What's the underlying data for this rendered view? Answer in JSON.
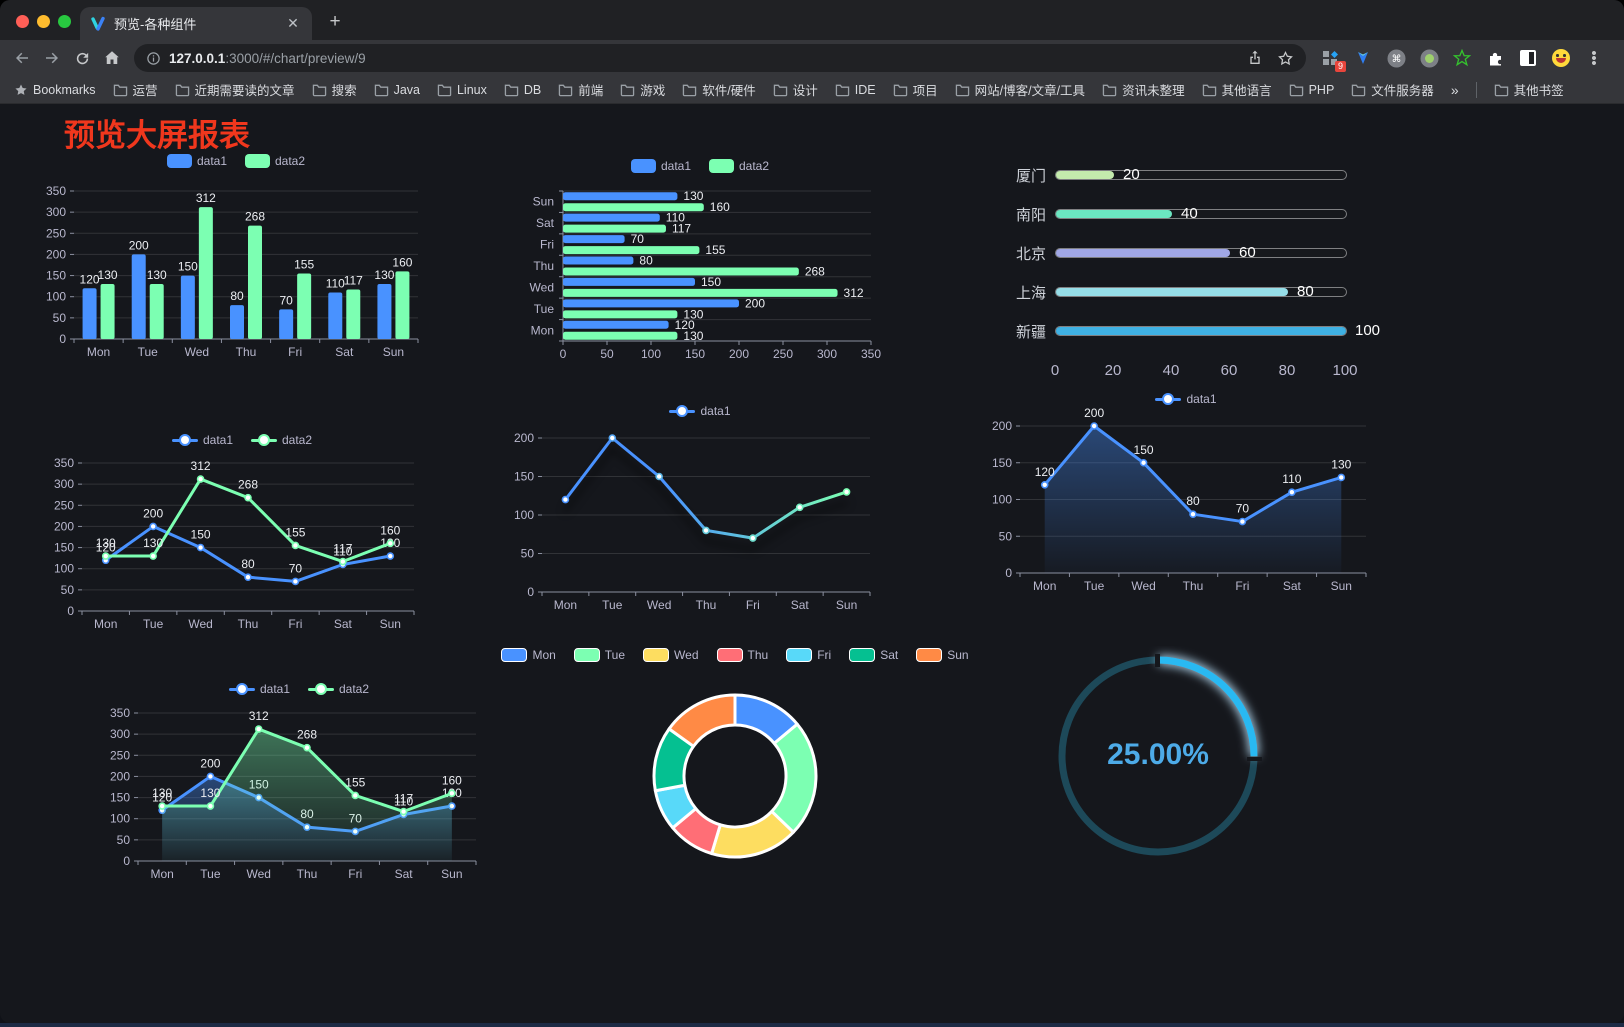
{
  "browser": {
    "tab": {
      "title": "预览-各种组件"
    },
    "new_tab_label": "+",
    "close_label": "✕",
    "url": {
      "host": "127.0.0.1",
      "rest": ":3000/#/chart/preview/9"
    },
    "bookmarks_label": "Bookmarks",
    "bookmarks": [
      "运营",
      "近期需要读的文章",
      "搜索",
      "Java",
      "Linux",
      "DB",
      "前端",
      "游戏",
      "软件/硬件",
      "设计",
      "IDE",
      "项目",
      "网站/博客/文章/工具",
      "资讯未整理",
      "其他语言",
      "PHP",
      "文件服务器"
    ],
    "bookmarks_overflow": "»",
    "other_bookmarks": "其他书签",
    "extension_badge": "9"
  },
  "page": {
    "title": "预览大屏报表"
  },
  "theme": {
    "background": "#15171c",
    "axis_text": "#b9b8ce",
    "grid_line": "rgba(255,255,255,0.12)",
    "axis_line": "#8b90a0",
    "value_label": "#eceef2"
  },
  "chart_data": [
    {
      "id": "grouped-bar",
      "type": "bar",
      "categories": [
        "Mon",
        "Tue",
        "Wed",
        "Thu",
        "Fri",
        "Sat",
        "Sun"
      ],
      "series": [
        {
          "name": "data1",
          "color": "#4992ff",
          "values": [
            120,
            200,
            150,
            80,
            70,
            110,
            130
          ]
        },
        {
          "name": "data2",
          "color": "#7cffb2",
          "values": [
            130,
            130,
            312,
            268,
            155,
            117,
            160
          ]
        }
      ],
      "ylim": [
        0,
        350
      ],
      "ytick_step": 50,
      "legend_position": "top",
      "value_labels": true
    },
    {
      "id": "grouped-hbar",
      "type": "bar",
      "orientation": "horizontal",
      "categories": [
        "Mon",
        "Tue",
        "Wed",
        "Thu",
        "Fri",
        "Sat",
        "Sun"
      ],
      "series": [
        {
          "name": "data1",
          "color": "#4992ff",
          "values": [
            120,
            200,
            150,
            80,
            70,
            110,
            130
          ]
        },
        {
          "name": "data2",
          "color": "#7cffb2",
          "values": [
            130,
            130,
            312,
            268,
            155,
            117,
            160
          ]
        }
      ],
      "xlim": [
        0,
        350
      ],
      "xtick_step": 50,
      "legend_position": "top",
      "value_labels": true
    },
    {
      "id": "city-progress",
      "type": "bar",
      "variant": "progress",
      "categories": [
        "厦门",
        "南阳",
        "北京",
        "上海",
        "新疆"
      ],
      "values": [
        20,
        40,
        60,
        80,
        100
      ],
      "colors": [
        "#c4ebad",
        "#6be6c1",
        "#a0a7e6",
        "#96dee8",
        "#3fb1e3"
      ],
      "xlim": [
        0,
        100
      ],
      "xticks": [
        0,
        20,
        40,
        60,
        80,
        100
      ],
      "value_labels": true
    },
    {
      "id": "dual-line",
      "type": "line",
      "categories": [
        "Mon",
        "Tue",
        "Wed",
        "Thu",
        "Fri",
        "Sat",
        "Sun"
      ],
      "series": [
        {
          "name": "data1",
          "color": "#4992ff",
          "values": [
            120,
            200,
            150,
            80,
            70,
            110,
            130
          ]
        },
        {
          "name": "data2",
          "color": "#7cffb2",
          "values": [
            130,
            130,
            312,
            268,
            155,
            117,
            160
          ]
        }
      ],
      "ylim": [
        0,
        350
      ],
      "ytick_step": 50,
      "legend_position": "top",
      "value_labels": true
    },
    {
      "id": "gradient-line",
      "type": "line",
      "categories": [
        "Mon",
        "Tue",
        "Wed",
        "Thu",
        "Fri",
        "Sat",
        "Sun"
      ],
      "series": [
        {
          "name": "data1",
          "color": "#4992ff",
          "values": [
            120,
            200,
            150,
            80,
            70,
            110,
            130
          ]
        }
      ],
      "line_gradient": [
        "#4992ff",
        "#7cffb2"
      ],
      "ylim": [
        0,
        200
      ],
      "ytick_step": 50,
      "legend_position": "top",
      "value_labels": false
    },
    {
      "id": "area-line",
      "type": "area",
      "categories": [
        "Mon",
        "Tue",
        "Wed",
        "Thu",
        "Fri",
        "Sat",
        "Sun"
      ],
      "series": [
        {
          "name": "data1",
          "color": "#4992ff",
          "values": [
            120,
            200,
            150,
            80,
            70,
            110,
            130
          ]
        }
      ],
      "ylim": [
        0,
        200
      ],
      "ytick_step": 50,
      "legend_position": "top",
      "value_labels": true
    },
    {
      "id": "dual-area",
      "type": "area",
      "categories": [
        "Mon",
        "Tue",
        "Wed",
        "Thu",
        "Fri",
        "Sat",
        "Sun"
      ],
      "series": [
        {
          "name": "data1",
          "color": "#4992ff",
          "values": [
            120,
            200,
            150,
            80,
            70,
            110,
            130
          ]
        },
        {
          "name": "data2",
          "color": "#7cffb2",
          "values": [
            130,
            130,
            312,
            268,
            155,
            117,
            160
          ]
        }
      ],
      "ylim": [
        0,
        350
      ],
      "ytick_step": 50,
      "legend_position": "top",
      "value_labels": true
    },
    {
      "id": "donut",
      "type": "pie",
      "categories": [
        "Mon",
        "Tue",
        "Wed",
        "Thu",
        "Fri",
        "Sat",
        "Sun"
      ],
      "values": [
        120,
        200,
        150,
        80,
        70,
        110,
        130
      ],
      "colors": [
        "#4992ff",
        "#7cffb2",
        "#fddd60",
        "#ff6e76",
        "#58d9f9",
        "#05c091",
        "#ff8a45"
      ],
      "inner_radius_ratio": 0.63,
      "legend_position": "top"
    },
    {
      "id": "gauge",
      "type": "gauge",
      "value": 25,
      "min": 0,
      "max": 100,
      "label": "25.00%",
      "arc_color": "#29b9f2",
      "track_color": "#1d4959",
      "text_color": "#4dabe8"
    }
  ]
}
